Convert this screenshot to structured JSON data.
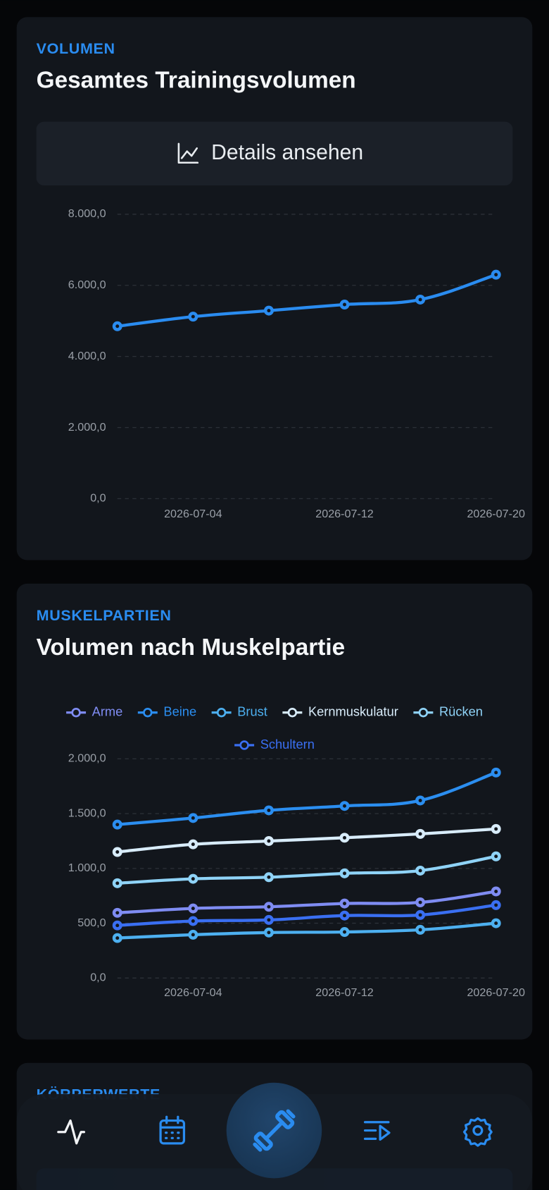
{
  "cards": [
    {
      "eyebrow": "VOLUMEN",
      "title": "Gesamtes Trainingsvolumen",
      "button": "Details ansehen"
    },
    {
      "eyebrow": "MUSKELPARTIEN",
      "title": "Volumen nach Muskelpartie"
    },
    {
      "eyebrow": "KÖRPERWERTE"
    }
  ],
  "chart_data": [
    {
      "type": "line",
      "x": [
        "2026-06-30",
        "2026-07-04",
        "2026-07-08",
        "2026-07-12",
        "2026-07-16",
        "2026-07-20"
      ],
      "series": [
        {
          "color": "#2a8cf0",
          "values": [
            4850,
            5120,
            5290,
            5460,
            5600,
            6300
          ]
        }
      ],
      "xlim": [
        "2026-06-30",
        "2026-07-20"
      ],
      "xticks": [
        "2026-07-04",
        "2026-07-12",
        "2026-07-20"
      ],
      "ylim": [
        0,
        8000
      ],
      "yticks": [
        {
          "value": 0,
          "label": "0,0"
        },
        {
          "value": 2000,
          "label": "2.000,0"
        },
        {
          "value": 4000,
          "label": "4.000,0"
        },
        {
          "value": 6000,
          "label": "6.000,0"
        },
        {
          "value": 8000,
          "label": "8.000,0"
        }
      ],
      "grid": true
    },
    {
      "type": "line",
      "x": [
        "2026-06-30",
        "2026-07-04",
        "2026-07-08",
        "2026-07-12",
        "2026-07-16",
        "2026-07-20"
      ],
      "series": [
        {
          "name": "Arme",
          "color": "#7f8cf2",
          "values": [
            595,
            635,
            650,
            680,
            690,
            790
          ]
        },
        {
          "name": "Beine",
          "color": "#2b8ef0",
          "values": [
            1400,
            1460,
            1530,
            1570,
            1620,
            1875
          ]
        },
        {
          "name": "Brust",
          "color": "#4db0f0",
          "values": [
            365,
            395,
            415,
            420,
            440,
            500
          ]
        },
        {
          "name": "Kernmuskulatur",
          "color": "#d8ecfa",
          "values": [
            1150,
            1220,
            1250,
            1280,
            1315,
            1360
          ]
        },
        {
          "name": "Rücken",
          "color": "#8fd3f7",
          "values": [
            865,
            905,
            920,
            955,
            980,
            1110
          ]
        },
        {
          "name": "Schultern",
          "color": "#3a6ff2",
          "values": [
            480,
            520,
            530,
            570,
            575,
            665
          ]
        }
      ],
      "xlim": [
        "2026-06-30",
        "2026-07-20"
      ],
      "xticks": [
        "2026-07-04",
        "2026-07-12",
        "2026-07-20"
      ],
      "ylim": [
        0,
        2000
      ],
      "yticks": [
        {
          "value": 0,
          "label": "0,0"
        },
        {
          "value": 500,
          "label": "500,0"
        },
        {
          "value": 1000,
          "label": "1.000,0"
        },
        {
          "value": 1500,
          "label": "1.500,0"
        },
        {
          "value": 2000,
          "label": "2.000,0"
        }
      ],
      "grid": true,
      "legend": "top"
    }
  ]
}
